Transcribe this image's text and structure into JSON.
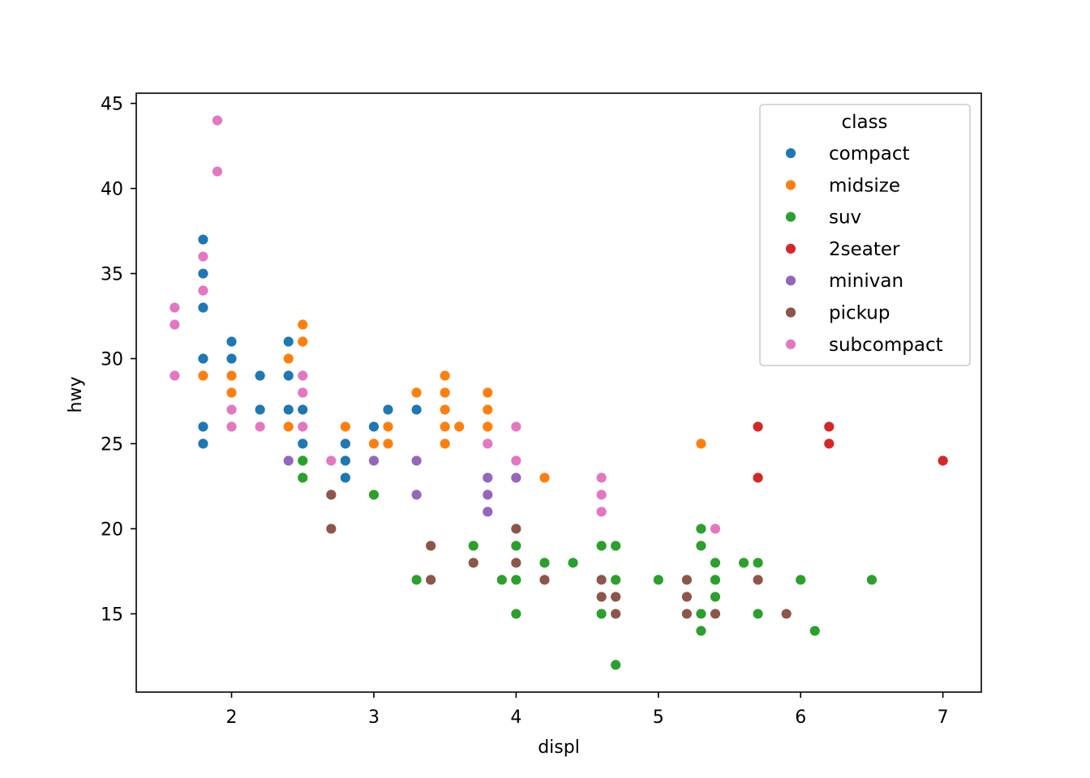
{
  "chart_data": {
    "type": "scatter",
    "title": "",
    "xlabel": "displ",
    "ylabel": "hwy",
    "xlim": [
      1.33,
      7.27
    ],
    "ylim": [
      10.4,
      45.6
    ],
    "xticks": [
      2,
      3,
      4,
      5,
      6,
      7
    ],
    "yticks": [
      15,
      20,
      25,
      30,
      35,
      40,
      45
    ],
    "grid": false,
    "legend": {
      "title": "class",
      "position": "top-right"
    },
    "series": [
      {
        "name": "compact",
        "color": "#1f77b4",
        "points": [
          [
            1.8,
            37
          ],
          [
            1.8,
            35
          ],
          [
            1.8,
            33
          ],
          [
            1.8,
            30
          ],
          [
            1.8,
            26
          ],
          [
            1.8,
            25
          ],
          [
            2.0,
            31
          ],
          [
            2.0,
            30
          ],
          [
            2.2,
            29
          ],
          [
            2.2,
            27
          ],
          [
            2.4,
            31
          ],
          [
            2.4,
            29
          ],
          [
            2.4,
            27
          ],
          [
            2.5,
            27
          ],
          [
            2.5,
            25
          ],
          [
            2.8,
            25
          ],
          [
            2.8,
            24
          ],
          [
            2.8,
            23
          ],
          [
            3.0,
            26
          ],
          [
            3.1,
            27
          ],
          [
            3.3,
            27
          ]
        ]
      },
      {
        "name": "midsize",
        "color": "#ff7f0e",
        "points": [
          [
            1.8,
            29
          ],
          [
            2.0,
            29
          ],
          [
            2.0,
            28
          ],
          [
            2.4,
            30
          ],
          [
            2.4,
            26
          ],
          [
            2.5,
            32
          ],
          [
            2.5,
            31
          ],
          [
            2.8,
            26
          ],
          [
            3.0,
            25
          ],
          [
            3.1,
            26
          ],
          [
            3.1,
            25
          ],
          [
            3.3,
            28
          ],
          [
            3.5,
            29
          ],
          [
            3.5,
            28
          ],
          [
            3.5,
            27
          ],
          [
            3.5,
            26
          ],
          [
            3.5,
            25
          ],
          [
            3.6,
            26
          ],
          [
            3.8,
            28
          ],
          [
            3.8,
            27
          ],
          [
            3.8,
            26
          ],
          [
            4.2,
            23
          ],
          [
            5.3,
            25
          ]
        ]
      },
      {
        "name": "suv",
        "color": "#2ca02c",
        "points": [
          [
            2.5,
            24
          ],
          [
            2.5,
            23
          ],
          [
            3.0,
            22
          ],
          [
            3.3,
            17
          ],
          [
            3.7,
            19
          ],
          [
            3.9,
            17
          ],
          [
            4.0,
            20
          ],
          [
            4.0,
            19
          ],
          [
            4.0,
            17
          ],
          [
            4.0,
            15
          ],
          [
            4.2,
            18
          ],
          [
            4.4,
            18
          ],
          [
            4.6,
            19
          ],
          [
            4.6,
            15
          ],
          [
            4.7,
            19
          ],
          [
            4.7,
            17
          ],
          [
            4.7,
            15
          ],
          [
            4.7,
            12
          ],
          [
            5.0,
            17
          ],
          [
            5.3,
            20
          ],
          [
            5.3,
            19
          ],
          [
            5.3,
            15
          ],
          [
            5.3,
            14
          ],
          [
            5.4,
            18
          ],
          [
            5.4,
            17
          ],
          [
            5.4,
            16
          ],
          [
            5.6,
            18
          ],
          [
            5.7,
            18
          ],
          [
            5.7,
            15
          ],
          [
            6.0,
            17
          ],
          [
            6.1,
            14
          ],
          [
            6.5,
            17
          ]
        ]
      },
      {
        "name": "2seater",
        "color": "#d62728",
        "points": [
          [
            5.7,
            26
          ],
          [
            5.7,
            23
          ],
          [
            6.2,
            26
          ],
          [
            6.2,
            25
          ],
          [
            7.0,
            24
          ]
        ]
      },
      {
        "name": "minivan",
        "color": "#9467bd",
        "points": [
          [
            2.4,
            24
          ],
          [
            3.0,
            24
          ],
          [
            3.3,
            24
          ],
          [
            3.3,
            22
          ],
          [
            3.8,
            23
          ],
          [
            3.8,
            22
          ],
          [
            3.8,
            21
          ],
          [
            4.0,
            23
          ]
        ]
      },
      {
        "name": "pickup",
        "color": "#8c564b",
        "points": [
          [
            2.7,
            22
          ],
          [
            2.7,
            20
          ],
          [
            3.4,
            19
          ],
          [
            3.4,
            17
          ],
          [
            3.7,
            18
          ],
          [
            4.0,
            20
          ],
          [
            4.0,
            18
          ],
          [
            4.2,
            17
          ],
          [
            4.6,
            17
          ],
          [
            4.6,
            16
          ],
          [
            4.7,
            16
          ],
          [
            4.7,
            15
          ],
          [
            5.2,
            17
          ],
          [
            5.2,
            16
          ],
          [
            5.2,
            15
          ],
          [
            5.4,
            15
          ],
          [
            5.7,
            17
          ],
          [
            5.9,
            15
          ]
        ]
      },
      {
        "name": "subcompact",
        "color": "#e377c2",
        "points": [
          [
            1.6,
            33
          ],
          [
            1.6,
            32
          ],
          [
            1.6,
            29
          ],
          [
            1.8,
            36
          ],
          [
            1.8,
            34
          ],
          [
            1.9,
            44
          ],
          [
            1.9,
            41
          ],
          [
            2.0,
            27
          ],
          [
            2.0,
            26
          ],
          [
            2.2,
            26
          ],
          [
            2.5,
            29
          ],
          [
            2.5,
            28
          ],
          [
            2.5,
            26
          ],
          [
            2.7,
            24
          ],
          [
            3.8,
            25
          ],
          [
            4.0,
            26
          ],
          [
            4.0,
            24
          ],
          [
            4.6,
            23
          ],
          [
            4.6,
            22
          ],
          [
            4.6,
            21
          ],
          [
            5.4,
            20
          ]
        ]
      }
    ]
  }
}
